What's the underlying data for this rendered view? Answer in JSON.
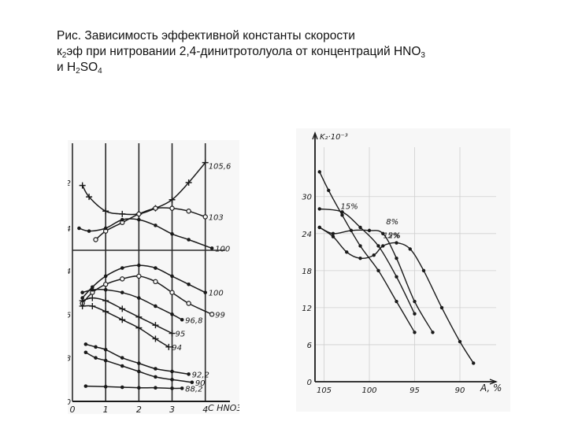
{
  "caption": {
    "line1": "Рис. Зависимость эффективной константы скорости",
    "line2_a": "к",
    "line2_sub": "2",
    "line2_b": "эф при нитровании 2,4-динитротолуола от концентраций HNO",
    "line2_sub2": "3",
    "line3_a": "и H",
    "line3_sub": "2",
    "line3_b": "SO",
    "line3_sub2": "4"
  },
  "chart_data": [
    {
      "type": "line",
      "title": "",
      "xlabel": "C HNO3",
      "ylabel": "",
      "xlim": [
        0,
        4.6
      ],
      "ylim": [
        0,
        36
      ],
      "x_ticks": [
        "0",
        "1",
        "2",
        "3",
        "4"
      ],
      "y_ticks_left": [
        "0",
        "8",
        "16",
        "24"
      ],
      "y_ticks_top": [
        "24",
        "32"
      ],
      "series": [
        {
          "name": "105,6",
          "points": [
            [
              0.3,
              31.5
            ],
            [
              0.5,
              29.5
            ],
            [
              1.0,
              27
            ],
            [
              1.5,
              26.5
            ],
            [
              2.0,
              26.5
            ],
            [
              2.5,
              27.5
            ],
            [
              3.0,
              29
            ],
            [
              3.5,
              32
            ],
            [
              4.0,
              35.5
            ]
          ]
        },
        {
          "name": "103",
          "points": [
            [
              0.7,
              22
            ],
            [
              1.0,
              23.5
            ],
            [
              1.5,
              25
            ],
            [
              2.0,
              26.5
            ],
            [
              2.5,
              27.5
            ],
            [
              3.0,
              27.5
            ],
            [
              3.5,
              27
            ],
            [
              4.0,
              26
            ]
          ]
        },
        {
          "name": "100",
          "points": [
            [
              0.2,
              24
            ],
            [
              0.5,
              23.5
            ],
            [
              1.0,
              24
            ],
            [
              1.5,
              25.5
            ],
            [
              2.0,
              25.5
            ],
            [
              2.5,
              24.5
            ],
            [
              3.0,
              23
            ],
            [
              3.5,
              22
            ],
            [
              4.2,
              20.5
            ]
          ]
        },
        {
          "name": "100",
          "points": [
            [
              0.3,
              19
            ],
            [
              0.6,
              21
            ],
            [
              1.0,
              23
            ],
            [
              1.5,
              24.5
            ],
            [
              2.0,
              25
            ],
            [
              2.5,
              24.5
            ],
            [
              3.0,
              23
            ],
            [
              3.5,
              21.5
            ],
            [
              4.0,
              20
            ]
          ]
        },
        {
          "name": "99",
          "points": [
            [
              0.3,
              18
            ],
            [
              0.6,
              20
            ],
            [
              1.0,
              21.5
            ],
            [
              1.5,
              22.5
            ],
            [
              2.0,
              23
            ],
            [
              2.5,
              22
            ],
            [
              3.0,
              20
            ],
            [
              3.5,
              18
            ],
            [
              4.2,
              16
            ]
          ]
        },
        {
          "name": "96,8",
          "points": [
            [
              0.3,
              20
            ],
            [
              0.6,
              20.5
            ],
            [
              1.0,
              20.5
            ],
            [
              1.5,
              20
            ],
            [
              2.0,
              19
            ],
            [
              2.5,
              17.5
            ],
            [
              3.0,
              16
            ],
            [
              3.3,
              15
            ]
          ]
        },
        {
          "name": "95",
          "points": [
            [
              0.3,
              18.5
            ],
            [
              0.6,
              19
            ],
            [
              1.0,
              18.5
            ],
            [
              1.5,
              17
            ],
            [
              2.0,
              15.5
            ],
            [
              2.5,
              14
            ],
            [
              3.0,
              12.5
            ]
          ]
        },
        {
          "name": "94",
          "points": [
            [
              0.3,
              17.5
            ],
            [
              0.6,
              17.5
            ],
            [
              1.0,
              16.5
            ],
            [
              1.5,
              15
            ],
            [
              2.0,
              13.5
            ],
            [
              2.5,
              11.5
            ],
            [
              2.9,
              10
            ]
          ]
        },
        {
          "name": "92,2",
          "points": [
            [
              0.4,
              10.5
            ],
            [
              0.7,
              10
            ],
            [
              1.0,
              9.5
            ],
            [
              1.5,
              8
            ],
            [
              2.0,
              7
            ],
            [
              2.5,
              6
            ],
            [
              3.0,
              5.5
            ],
            [
              3.5,
              5
            ]
          ]
        },
        {
          "name": "90",
          "points": [
            [
              0.4,
              9
            ],
            [
              0.7,
              8
            ],
            [
              1.0,
              7.5
            ],
            [
              1.5,
              6.5
            ],
            [
              2.0,
              5.5
            ],
            [
              2.5,
              4.5
            ],
            [
              3.0,
              4
            ],
            [
              3.6,
              3.5
            ]
          ]
        },
        {
          "name": "88,2",
          "points": [
            [
              0.4,
              2.8
            ],
            [
              1.0,
              2.7
            ],
            [
              1.5,
              2.6
            ],
            [
              2.0,
              2.5
            ],
            [
              2.5,
              2.5
            ],
            [
              3.0,
              2.4
            ],
            [
              3.3,
              2.4
            ]
          ]
        }
      ]
    },
    {
      "type": "line",
      "title": "",
      "xlabel": "A, %",
      "ylabel": "K₂·10⁻³",
      "x_reversed": true,
      "xlim": [
        86,
        106
      ],
      "ylim": [
        0,
        38
      ],
      "x_ticks": [
        "105",
        "100",
        "95",
        "90"
      ],
      "y_ticks": [
        "0",
        "6",
        "12",
        "18",
        "24",
        "30"
      ],
      "series": [
        {
          "name": "15%",
          "points": [
            [
              105.5,
              34
            ],
            [
              104.5,
              31
            ],
            [
              103,
              27
            ],
            [
              101,
              22
            ],
            [
              99,
              18
            ],
            [
              97,
              13
            ],
            [
              95,
              8
            ]
          ]
        },
        {
          "name": "12%",
          "points": [
            [
              105.5,
              28
            ],
            [
              103,
              27.5
            ],
            [
              101,
              25
            ],
            [
              99,
              22
            ],
            [
              97,
              17
            ],
            [
              95,
              11
            ]
          ]
        },
        {
          "name": "8%",
          "points": [
            [
              105.5,
              25
            ],
            [
              104,
              24
            ],
            [
              102,
              24.5
            ],
            [
              100,
              24.5
            ],
            [
              98.5,
              24
            ],
            [
              97,
              20
            ],
            [
              95,
              13
            ],
            [
              93,
              8
            ]
          ]
        },
        {
          "name": "5%",
          "points": [
            [
              105.5,
              25
            ],
            [
              104,
              23.5
            ],
            [
              102.5,
              21
            ],
            [
              101,
              20
            ],
            [
              99.5,
              20.5
            ],
            [
              98.5,
              22
            ],
            [
              97,
              22.5
            ],
            [
              95.5,
              21.5
            ],
            [
              94,
              18
            ],
            [
              92,
              12
            ],
            [
              90,
              6.5
            ],
            [
              88.5,
              3
            ]
          ]
        }
      ]
    }
  ]
}
